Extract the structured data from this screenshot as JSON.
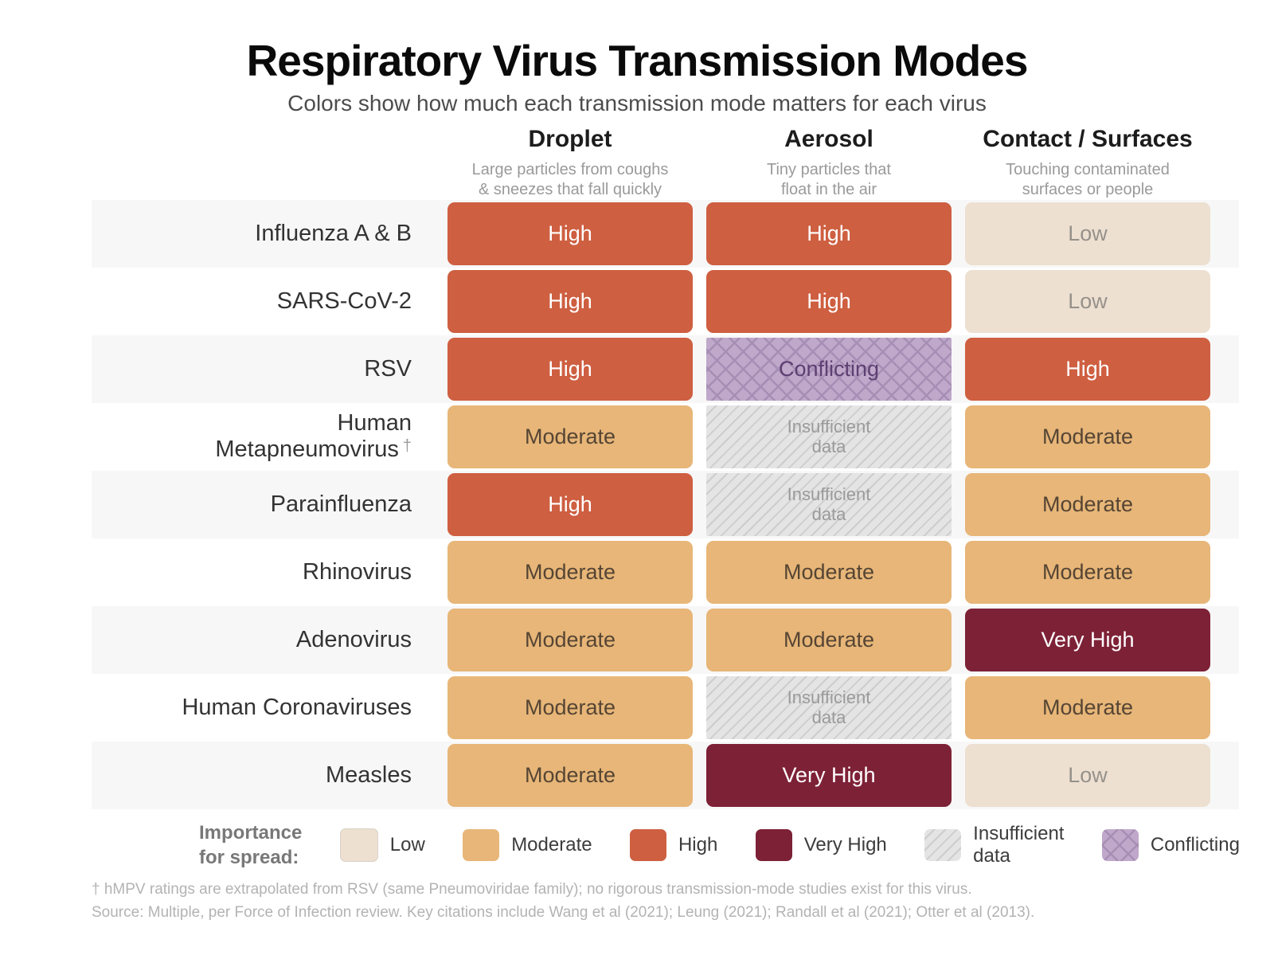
{
  "title": "Respiratory Virus Transmission Modes",
  "subtitle": "Colors show how much each transmission mode matters for each virus",
  "columns": [
    {
      "label": "Droplet",
      "description": "Large particles from coughs\n& sneezes that fall quickly"
    },
    {
      "label": "Aerosol",
      "description": "Tiny particles that\nfloat in the air"
    },
    {
      "label": "Contact / Surfaces",
      "description": "Touching contaminated\nsurfaces or people"
    }
  ],
  "rows": [
    {
      "label": "Influenza A & B",
      "cells": [
        {
          "level": "high",
          "label": "High"
        },
        {
          "level": "high",
          "label": "High"
        },
        {
          "level": "low",
          "label": "Low"
        }
      ]
    },
    {
      "label": "SARS-CoV-2",
      "cells": [
        {
          "level": "high",
          "label": "High"
        },
        {
          "level": "high",
          "label": "High"
        },
        {
          "level": "low",
          "label": "Low"
        }
      ]
    },
    {
      "label": "RSV",
      "cells": [
        {
          "level": "high",
          "label": "High"
        },
        {
          "level": "conflicting",
          "label": "Conflicting"
        },
        {
          "level": "high",
          "label": "High"
        }
      ]
    },
    {
      "label": "Human\nMetapneumovirus",
      "dagger": "†",
      "cells": [
        {
          "level": "moderate",
          "label": "Moderate"
        },
        {
          "level": "insufficient",
          "label": "Insufficient\ndata"
        },
        {
          "level": "moderate",
          "label": "Moderate"
        }
      ]
    },
    {
      "label": "Parainfluenza",
      "cells": [
        {
          "level": "high",
          "label": "High"
        },
        {
          "level": "insufficient",
          "label": "Insufficient\ndata"
        },
        {
          "level": "moderate",
          "label": "Moderate"
        }
      ]
    },
    {
      "label": "Rhinovirus",
      "cells": [
        {
          "level": "moderate",
          "label": "Moderate"
        },
        {
          "level": "moderate",
          "label": "Moderate"
        },
        {
          "level": "moderate",
          "label": "Moderate"
        }
      ]
    },
    {
      "label": "Adenovirus",
      "cells": [
        {
          "level": "moderate",
          "label": "Moderate"
        },
        {
          "level": "moderate",
          "label": "Moderate"
        },
        {
          "level": "very_high",
          "label": "Very High"
        }
      ]
    },
    {
      "label": "Human Coronaviruses",
      "cells": [
        {
          "level": "moderate",
          "label": "Moderate"
        },
        {
          "level": "insufficient",
          "label": "Insufficient\ndata"
        },
        {
          "level": "moderate",
          "label": "Moderate"
        }
      ]
    },
    {
      "label": "Measles",
      "cells": [
        {
          "level": "moderate",
          "label": "Moderate"
        },
        {
          "level": "very_high",
          "label": "Very High"
        },
        {
          "level": "low",
          "label": "Low"
        }
      ]
    }
  ],
  "legend": {
    "title": "Importance\nfor spread:",
    "items": [
      {
        "level": "low",
        "label": "Low"
      },
      {
        "level": "moderate",
        "label": "Moderate"
      },
      {
        "level": "high",
        "label": "High"
      },
      {
        "level": "very_high",
        "label": "Very High"
      },
      {
        "level": "insufficient",
        "label": "Insufficient\ndata"
      },
      {
        "level": "conflicting",
        "label": "Conflicting"
      }
    ]
  },
  "footnotes": [
    "† hMPV ratings are extrapolated from RSV (same Pneumoviridae family); no rigorous transmission-mode studies exist for this virus.",
    "Source: Multiple, per Force of Infection review. Key citations include Wang et al (2021); Leung (2021); Randall et al (2021); Otter et al (2013)."
  ],
  "colors": {
    "low": "#EDE0D1",
    "moderate": "#E7B678",
    "high": "#CE5F41",
    "very_high": "#7D2136",
    "insufficient_bg": "#E4E4E4",
    "insufficient_hatch": "#CDCDCD",
    "conflicting_bg": "#BFA8CA",
    "conflicting_hatch": "#A68EB4",
    "row_stripe": "#F7F7F7"
  },
  "chart_data": {
    "type": "heatmap",
    "title": "Respiratory Virus Transmission Modes",
    "subtitle": "Colors show how much each transmission mode matters for each virus",
    "x_categories": [
      "Droplet",
      "Aerosol",
      "Contact / Surfaces"
    ],
    "y_categories": [
      "Influenza A & B",
      "SARS-CoV-2",
      "RSV",
      "Human Metapneumovirus",
      "Parainfluenza",
      "Rhinovirus",
      "Adenovirus",
      "Human Coronaviruses",
      "Measles"
    ],
    "values": [
      [
        "High",
        "High",
        "Low"
      ],
      [
        "High",
        "High",
        "Low"
      ],
      [
        "High",
        "Conflicting",
        "High"
      ],
      [
        "Moderate",
        "Insufficient data",
        "Moderate"
      ],
      [
        "High",
        "Insufficient data",
        "Moderate"
      ],
      [
        "Moderate",
        "Moderate",
        "Moderate"
      ],
      [
        "Moderate",
        "Moderate",
        "Very High"
      ],
      [
        "Moderate",
        "Insufficient data",
        "Moderate"
      ],
      [
        "Moderate",
        "Very High",
        "Low"
      ]
    ],
    "scale": [
      "Low",
      "Moderate",
      "High",
      "Very High",
      "Insufficient data",
      "Conflicting"
    ],
    "legend_position": "bottom",
    "grid": false
  }
}
